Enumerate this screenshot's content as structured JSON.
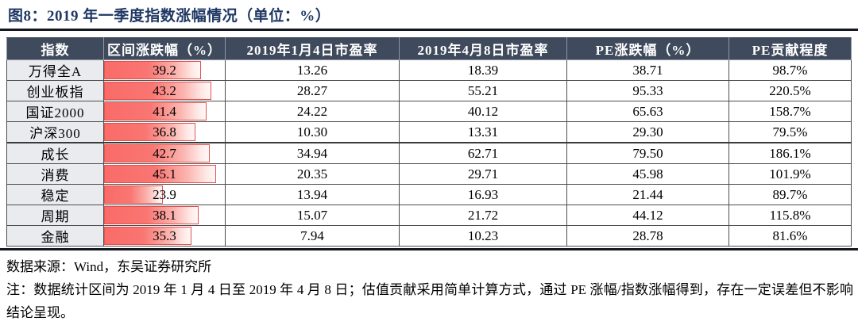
{
  "title": "图8：2019 年一季度指数涨幅情况（单位：%）",
  "footer": {
    "source": "数据来源：Wind，东吴证券研究所",
    "note": "注：数据统计区间为 2019 年 1 月 4 日至 2019 年 4 月 8 日；估值贡献采用简单计算方式，通过 PE 涨幅/指数涨幅得到，存在一定误差但不影响结论呈现。"
  },
  "colors": {
    "title_text": "#1f3864",
    "header_bg": "#3f4a5c",
    "header_text": "#ffffff",
    "index_column_bg": "#e9ebee",
    "databar_fill_start": "#f96b68",
    "databar_fill_end": "#fff8f7",
    "databar_border": "#e4514e",
    "rule": "#141821"
  },
  "chart_data": {
    "type": "table",
    "title": "2019 年一季度指数涨幅情况（单位：%）",
    "columns": [
      "指数",
      "区间涨跌幅（%）",
      "2019年1月4日市盈率",
      "2019年4月8日市盈率",
      "PE涨跌幅（%）",
      "PE贡献程度"
    ],
    "rows": [
      [
        "万得全A",
        "39.2",
        "13.26",
        "18.39",
        "38.71",
        "98.7%"
      ],
      [
        "创业板指",
        "43.2",
        "28.27",
        "55.21",
        "95.33",
        "220.5%"
      ],
      [
        "国证2000",
        "41.4",
        "24.22",
        "40.12",
        "65.63",
        "158.7%"
      ],
      [
        "沪深300",
        "36.8",
        "10.30",
        "13.31",
        "29.30",
        "79.5%"
      ],
      [
        "成长",
        "42.7",
        "34.94",
        "62.71",
        "79.50",
        "186.1%"
      ],
      [
        "消费",
        "45.1",
        "20.35",
        "29.71",
        "45.98",
        "101.9%"
      ],
      [
        "稳定",
        "23.9",
        "13.94",
        "16.93",
        "21.44",
        "89.7%"
      ],
      [
        "周期",
        "38.1",
        "15.07",
        "21.72",
        "44.12",
        "115.8%"
      ],
      [
        "金融",
        "35.3",
        "7.94",
        "10.23",
        "28.78",
        "81.6%"
      ]
    ],
    "databar_column_index": 1,
    "databar_range": [
      0,
      45.1
    ],
    "group_separator_after_row": 3
  }
}
